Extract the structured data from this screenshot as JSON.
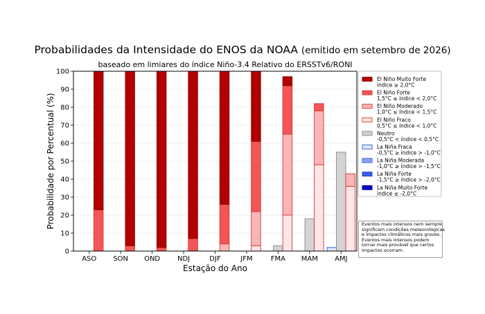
{
  "chart_data": {
    "type": "bar",
    "stacked": true,
    "title": "Probabilidades da Intensidade do ENOS da NOAA",
    "title_issued": "(emitido em setembro de 2026)",
    "subtitle": "baseado em limiares do índice Niño-3.4 Relativo do ERSSTv6/RONI",
    "xlabel": "Estação do Ano",
    "ylabel": "Probabilidade por Percentual (%)",
    "ylim": [
      0,
      100
    ],
    "yticks": [
      0,
      10,
      20,
      30,
      40,
      50,
      60,
      70,
      80,
      90,
      100
    ],
    "grid": true,
    "legend_position": "right",
    "categories": [
      "ASO",
      "SON",
      "OND",
      "NDJ",
      "DJF",
      "JFM",
      "FMA",
      "MAM",
      "AMJ"
    ],
    "el_nino_group": [
      {
        "name": "El Niño Fraco",
        "range": "0,5°C ≤ índice < 1,0°C",
        "color": "#fde6e6",
        "edge": "#d93232",
        "values": [
          0,
          0,
          0,
          0,
          0,
          3,
          20,
          48,
          36
        ]
      },
      {
        "name": "El Niño Moderado",
        "range": "1,0°C ≤ índice < 1,5°C",
        "color": "#f9b6b6",
        "edge": "#d93232",
        "values": [
          0,
          0,
          0,
          0,
          4,
          19,
          45,
          30,
          7
        ]
      },
      {
        "name": "El Niño Forte",
        "range": "1,5°C ≤ índice < 2,0°C",
        "color": "#f25656",
        "edge": "#d93232",
        "values": [
          23,
          3,
          2,
          7,
          22,
          39,
          27,
          4,
          0
        ]
      },
      {
        "name": "El Niño Muito Forte",
        "range": "índice ≥ 2,0°C",
        "color": "#b20000",
        "edge": "#8b0000",
        "values": [
          77,
          97,
          98,
          93,
          74,
          39,
          5,
          0,
          0
        ]
      }
    ],
    "neutral_group": [
      {
        "name": "Neutro",
        "range": "-0,5°C < índice < 0,5°C",
        "color": "#d3d3d3",
        "edge": "#888888",
        "values": [
          0,
          0,
          0,
          0,
          0,
          0,
          3,
          18,
          55
        ]
      }
    ],
    "la_nina_group": [
      {
        "name": "La Niña Fraca",
        "range": "-0,5°C ≥ índice > -1,0°C",
        "color": "#dde6ff",
        "edge": "#3355dd",
        "values": [
          0,
          0,
          0,
          0,
          0,
          0,
          0,
          0,
          2
        ]
      },
      {
        "name": "La Niña Moderada",
        "range": "-1,0°C ≥ índice > -1,5°C",
        "color": "#8aa6f2",
        "edge": "#3355dd",
        "values": [
          0,
          0,
          0,
          0,
          0,
          0,
          0,
          0,
          0
        ]
      },
      {
        "name": "La Niña Forte",
        "range": "-1,5°C ≥ índice > -2,0°C",
        "color": "#3b5ee8",
        "edge": "#2244cc",
        "values": [
          0,
          0,
          0,
          0,
          0,
          0,
          0,
          0,
          0
        ]
      },
      {
        "name": "La Niña Muito Forte",
        "range": "índice ≤ -2,0°C",
        "color": "#0000cc",
        "edge": "#000099",
        "values": [
          0,
          0,
          0,
          0,
          0,
          0,
          0,
          0,
          0
        ]
      }
    ],
    "legend_order": [
      "El Niño Muito Forte",
      "El Niño Forte",
      "El Niño Moderado",
      "El Niño Fraco",
      "Neutro",
      "La Niña Fraca",
      "La Niña Moderada",
      "La Niña Forte",
      "La Niña Muito Forte"
    ]
  },
  "note_lines": [
    "Eventos mais intensos nem sempre",
    "significam condições meteorológicas",
    "e impactos climáticos mais graves.",
    "Eventos mais intensos podem",
    "tornar mais provável que certos",
    "impactos ocorram."
  ]
}
